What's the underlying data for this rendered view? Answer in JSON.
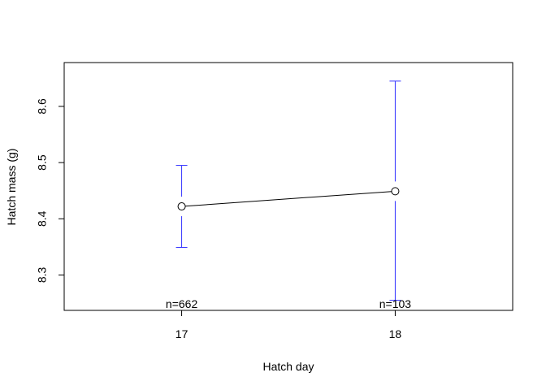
{
  "chart_data": {
    "type": "line",
    "title": "",
    "xlabel": "Hatch day",
    "ylabel": "Hatch mass (g)",
    "xlim": [
      16.45,
      18.55
    ],
    "ylim": [
      8.237,
      8.678
    ],
    "x_ticks": [
      "17",
      "18"
    ],
    "y_ticks": [
      "8.3",
      "8.4",
      "8.5",
      "8.6"
    ],
    "grid": false,
    "series": [
      {
        "x": [
          17,
          18
        ],
        "y": [
          8.422,
          8.449
        ],
        "lower": [
          8.349,
          8.255
        ],
        "upper": [
          8.495,
          8.645
        ],
        "n_labels": [
          "n=662",
          "n=103"
        ]
      }
    ],
    "colors": {
      "line": "#000000",
      "error_bars": "#3333ff"
    }
  }
}
